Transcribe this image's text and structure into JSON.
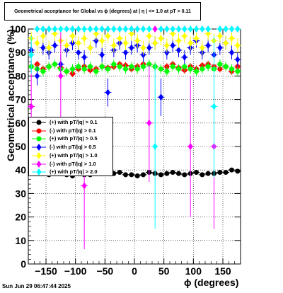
{
  "title": "Geometrical acceptance for Global vs ϕ (degrees) at |  η  | <= 1.0 at pT > 0.11",
  "timestamp": "Sun Jun 29 06:47:44 2025",
  "chart_data": {
    "type": "scatter",
    "title": "Geometrical acceptance for Global vs ϕ (degrees) at |  η  | <= 1.0 at pT > 0.11",
    "xlabel": "ϕ (degrees)",
    "ylabel": "Geometrical acceptance (%)",
    "xlim": [
      -180,
      180
    ],
    "ylim": [
      0,
      100
    ],
    "xticks": [
      -150,
      -100,
      -50,
      0,
      50,
      100,
      150
    ],
    "xtick_labels": [
      "−150",
      "−100",
      "−50",
      "0",
      "50",
      "100",
      "150"
    ],
    "yticks": [
      0,
      10,
      20,
      30,
      40,
      50,
      60,
      70,
      80,
      90,
      100
    ],
    "ytick_labels": [
      "0",
      "10",
      "20",
      "30",
      "40",
      "50",
      "60",
      "70",
      "80",
      "90",
      "100"
    ],
    "grid": true,
    "legend_position": "middle-left",
    "series": [
      {
        "name": "(+) with pT/|q| > 0.1",
        "color": "#000000",
        "marker": "circle",
        "x": [
          -175,
          -165,
          -155,
          -145,
          -135,
          -125,
          -115,
          -105,
          -95,
          -85,
          -75,
          -65,
          -55,
          -45,
          -35,
          -25,
          -15,
          -5,
          5,
          15,
          25,
          35,
          45,
          55,
          65,
          75,
          85,
          95,
          105,
          115,
          125,
          135,
          145,
          155,
          165,
          175
        ],
        "y": [
          39,
          38.5,
          39,
          38,
          38.5,
          39,
          38,
          37.5,
          38.5,
          38,
          38,
          39,
          38.5,
          39,
          38.5,
          39,
          38,
          38,
          37.5,
          38,
          39,
          38.5,
          38,
          38.5,
          39,
          38.5,
          38,
          38.5,
          39,
          38,
          38.5,
          38.5,
          39,
          39,
          40,
          39.5
        ],
        "yerr": [
          1,
          1,
          1,
          1,
          1,
          1,
          1,
          1,
          1,
          1,
          1,
          1,
          1,
          1,
          1,
          1,
          1,
          1,
          1,
          1,
          1,
          1,
          1,
          1,
          1,
          1,
          1,
          1,
          1,
          1,
          1,
          1,
          1,
          1,
          1,
          1
        ]
      },
      {
        "name": "(-) with pT/|q| > 0.1",
        "color": "#ff0000",
        "marker": "circle",
        "x": [
          -175,
          -165,
          -155,
          -145,
          -135,
          -125,
          -115,
          -105,
          -95,
          -85,
          -75,
          -65,
          -55,
          -45,
          -35,
          -25,
          -15,
          -5,
          5,
          15,
          25,
          35,
          45,
          55,
          65,
          75,
          85,
          95,
          105,
          115,
          125,
          135,
          145,
          155,
          165,
          175
        ],
        "y": [
          84,
          85,
          83,
          84,
          85,
          83.5,
          82,
          81,
          83,
          84,
          82.5,
          83,
          84,
          83.5,
          84,
          85,
          84.5,
          83,
          84,
          85,
          85,
          84,
          83,
          84,
          85,
          83.5,
          82.5,
          84,
          83,
          84.5,
          85,
          84,
          83,
          84,
          82,
          84
        ],
        "yerr": [
          1.5,
          1.5,
          1.5,
          1.5,
          1.5,
          1.5,
          1.5,
          1.5,
          1.5,
          1.5,
          1.5,
          1.5,
          1.5,
          1.5,
          1.5,
          1.5,
          1.5,
          1.5,
          1.5,
          1.5,
          1.5,
          1.5,
          1.5,
          1.5,
          1.5,
          1.5,
          1.5,
          1.5,
          1.5,
          1.5,
          1.5,
          1.5,
          1.5,
          1.5,
          1.5,
          1.5
        ]
      },
      {
        "name": "(+) with pT/|q| > 0.5",
        "color": "#00ff00",
        "marker": "circle",
        "x": [
          -175,
          -165,
          -155,
          -145,
          -135,
          -125,
          -115,
          -105,
          -95,
          -85,
          -75,
          -65,
          -55,
          -45,
          -35,
          -25,
          -15,
          -5,
          5,
          15,
          25,
          35,
          45,
          55,
          65,
          75,
          85,
          95,
          105,
          115,
          125,
          135,
          145,
          155,
          165,
          175
        ],
        "y": [
          84,
          83,
          82,
          84,
          85,
          83,
          82,
          83,
          84,
          83,
          84,
          82,
          84,
          83,
          85,
          84,
          83,
          84,
          83,
          84,
          85,
          84,
          83,
          82,
          84,
          83,
          84,
          83,
          82,
          83,
          84,
          83,
          85,
          84,
          83,
          82
        ],
        "yerr": [
          2,
          2,
          2,
          2,
          2,
          2,
          2,
          2,
          2,
          2,
          2,
          2,
          2,
          2,
          2,
          2,
          2,
          2,
          2,
          2,
          2,
          2,
          2,
          2,
          2,
          2,
          2,
          2,
          2,
          2,
          2,
          2,
          2,
          2,
          2,
          2
        ]
      },
      {
        "name": "(-) with pT/|q| > 0.5",
        "color": "#0000ff",
        "marker": "diamond",
        "x": [
          -175,
          -165,
          -155,
          -145,
          -135,
          -125,
          -115,
          -105,
          -95,
          -85,
          -75,
          -65,
          -55,
          -45,
          -35,
          -25,
          -15,
          -5,
          5,
          15,
          25,
          35,
          45,
          55,
          65,
          75,
          85,
          95,
          105,
          115,
          125,
          135,
          145,
          155,
          165,
          175
        ],
        "y": [
          91,
          80,
          92,
          90,
          93,
          85,
          91,
          94,
          90,
          88,
          92,
          95,
          89,
          73,
          91,
          94,
          90,
          92,
          93,
          89,
          92,
          94,
          71,
          90,
          93,
          91,
          88,
          92,
          95,
          90,
          93,
          89,
          92,
          94,
          90,
          87
        ],
        "yerr": [
          3,
          4,
          3,
          3,
          3,
          4,
          3,
          3,
          3,
          3,
          3,
          3,
          3,
          6,
          3,
          3,
          3,
          3,
          3,
          3,
          3,
          3,
          8,
          3,
          3,
          3,
          3,
          3,
          3,
          3,
          3,
          3,
          3,
          3,
          3,
          3
        ]
      },
      {
        "name": "(+) with pT/|q| > 1.0",
        "color": "#ffff00",
        "marker": "diamond",
        "x": [
          -175,
          -165,
          -155,
          -145,
          -135,
          -125,
          -115,
          -105,
          -95,
          -85,
          -75,
          -65,
          -55,
          -45,
          -35,
          -25,
          -15,
          -5,
          5,
          15,
          25,
          35,
          45,
          55,
          65,
          75,
          85,
          95,
          105,
          115,
          125,
          135,
          145,
          155,
          165,
          175
        ],
        "y": [
          96,
          94,
          97,
          92,
          98,
          95,
          93,
          97,
          94,
          96,
          92,
          98,
          95,
          97,
          93,
          96,
          94,
          98,
          95,
          92,
          97,
          94,
          96,
          93,
          98,
          95,
          97,
          94,
          96,
          92,
          98,
          95,
          97,
          94,
          96,
          93
        ],
        "yerr": [
          3,
          3,
          3,
          3,
          3,
          3,
          3,
          3,
          3,
          3,
          3,
          3,
          3,
          3,
          3,
          3,
          3,
          3,
          3,
          3,
          3,
          3,
          3,
          3,
          3,
          3,
          3,
          3,
          3,
          3,
          3,
          3,
          3,
          3,
          3,
          3
        ]
      },
      {
        "name": "(-) with pT/|q| > 1.0",
        "color": "#ff00ff",
        "marker": "diamond",
        "x": [
          -175,
          -165,
          -155,
          -145,
          -135,
          -125,
          -115,
          -105,
          -95,
          -85,
          -75,
          -65,
          -55,
          -45,
          -35,
          -25,
          -15,
          -5,
          5,
          15,
          25,
          35,
          45,
          55,
          65,
          75,
          85,
          95,
          105,
          115,
          125,
          135,
          145,
          155,
          165,
          175
        ],
        "y": [
          67,
          100,
          100,
          100,
          100,
          80,
          100,
          100,
          100,
          33.3,
          100,
          100,
          100,
          100,
          100,
          100,
          100,
          100,
          100,
          100,
          60,
          100,
          100,
          100,
          100,
          100,
          100,
          50,
          100,
          100,
          100,
          50,
          100,
          100,
          100,
          100
        ],
        "yerr": [
          20,
          0,
          0,
          0,
          0,
          20,
          0,
          0,
          0,
          27,
          0,
          0,
          0,
          0,
          0,
          0,
          0,
          0,
          0,
          0,
          25,
          0,
          0,
          0,
          0,
          0,
          0,
          30,
          0,
          0,
          0,
          35,
          0,
          0,
          0,
          0
        ]
      },
      {
        "name": "(+) with pT/|q| > 2.0",
        "color": "#00ffff",
        "marker": "diamond",
        "x": [
          -175,
          -165,
          -155,
          -145,
          -135,
          -125,
          -115,
          -105,
          -95,
          -85,
          -75,
          -65,
          -55,
          -45,
          -35,
          -25,
          -15,
          -5,
          5,
          15,
          25,
          35,
          45,
          55,
          65,
          75,
          85,
          95,
          105,
          115,
          125,
          135,
          145,
          155,
          165,
          175
        ],
        "y": [
          89,
          100,
          100,
          100,
          100,
          100,
          100,
          100,
          100,
          100,
          100,
          100,
          100,
          100,
          100,
          100,
          100,
          100,
          100,
          100,
          100,
          50,
          100,
          100,
          100,
          100,
          100,
          100,
          100,
          100,
          100,
          67,
          100,
          100,
          100,
          100
        ],
        "yerr": [
          8,
          0,
          0,
          0,
          0,
          0,
          0,
          0,
          0,
          0,
          0,
          0,
          0,
          0,
          0,
          0,
          0,
          0,
          0,
          0,
          0,
          35,
          0,
          0,
          0,
          0,
          0,
          0,
          0,
          0,
          0,
          30,
          0,
          0,
          0,
          0
        ]
      }
    ]
  }
}
